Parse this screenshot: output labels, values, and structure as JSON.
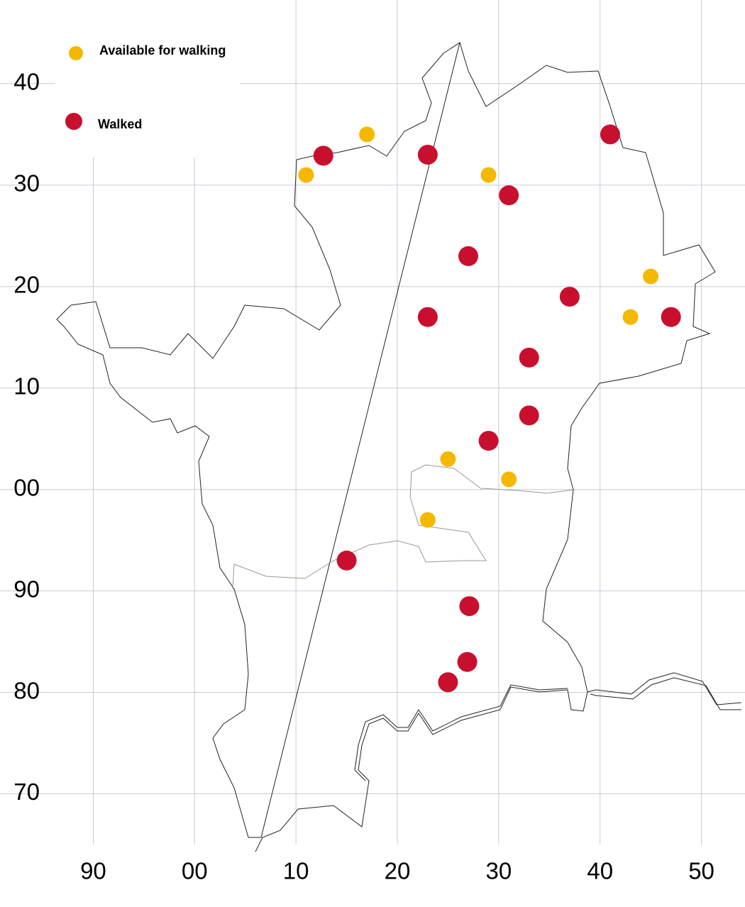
{
  "chart_data": {
    "type": "scatter",
    "xlim": [
      80.8,
      154.3
    ],
    "ylim": [
      65,
      148.25
    ],
    "xticks": [
      90,
      {
        "value": 100,
        "label": "00"
      },
      {
        "value": 110,
        "label": "10"
      },
      {
        "value": 120,
        "label": "20"
      },
      {
        "value": 130,
        "label": "30"
      },
      {
        "value": 140,
        "label": "40"
      },
      {
        "value": 150,
        "label": "50"
      }
    ],
    "yticks": [
      70,
      80,
      90,
      {
        "value": 100,
        "label": "00"
      },
      {
        "value": 110,
        "label": "10"
      },
      {
        "value": 120,
        "label": "20"
      },
      {
        "value": 130,
        "label": "30"
      },
      {
        "value": 140,
        "label": "40"
      }
    ],
    "grid": true,
    "legend": "top-left",
    "series": [
      {
        "name": "Available for walking",
        "color": "#f5b800",
        "x": [
          111,
          117,
          129,
          145,
          143,
          125,
          131,
          123
        ],
        "y": [
          131,
          135,
          131,
          121,
          117,
          103,
          101,
          97
        ]
      },
      {
        "name": "Walked",
        "color": "#c8102e",
        "x": [
          112.7,
          123,
          141,
          131,
          127,
          123,
          137,
          147,
          133,
          133,
          129,
          115,
          127.1,
          126.9,
          125
        ],
        "y": [
          132.9,
          133,
          135,
          129,
          123,
          117,
          119,
          117,
          113,
          107.3,
          104.8,
          93,
          88.5,
          83,
          81
        ]
      }
    ]
  }
}
